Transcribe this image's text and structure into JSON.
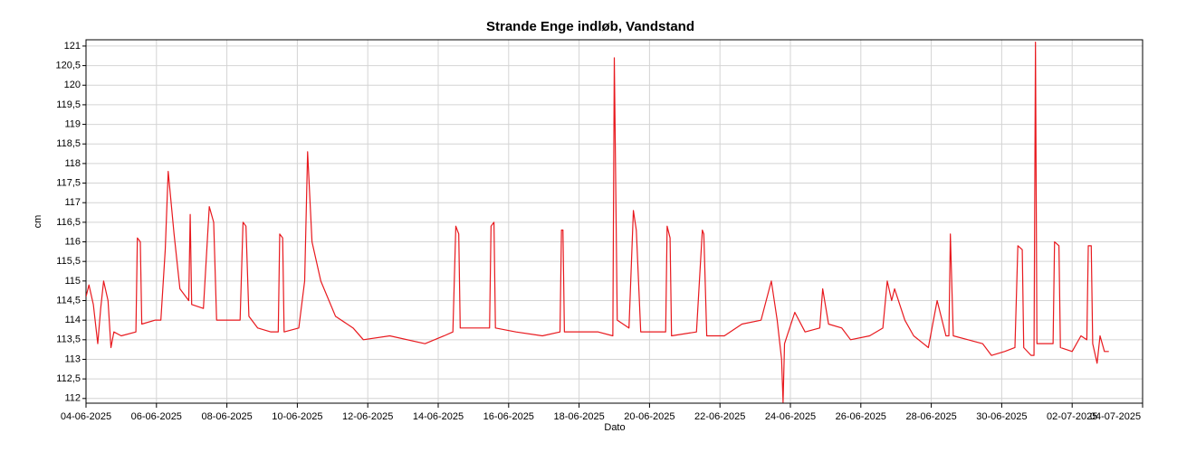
{
  "chart_data": {
    "type": "line",
    "title": "Strande Enge indløb, Vandstand",
    "x_label": "Dato",
    "y_label": "cm",
    "color": "#e8191e",
    "grid": true,
    "xlim": [
      "2025-06-04T00:00",
      "2025-07-04T00:00"
    ],
    "xticks": [
      {
        "value": "2025-06-04T00:00",
        "label": "04-06-2025"
      },
      {
        "value": "2025-06-06T00:00",
        "label": "06-06-2025"
      },
      {
        "value": "2025-06-08T00:00",
        "label": "08-06-2025"
      },
      {
        "value": "2025-06-10T00:00",
        "label": "10-06-2025"
      },
      {
        "value": "2025-06-12T00:00",
        "label": "12-06-2025"
      },
      {
        "value": "2025-06-14T00:00",
        "label": "14-06-2025"
      },
      {
        "value": "2025-06-16T00:00",
        "label": "16-06-2025"
      },
      {
        "value": "2025-06-18T00:00",
        "label": "18-06-2025"
      },
      {
        "value": "2025-06-20T00:00",
        "label": "20-06-2025"
      },
      {
        "value": "2025-06-22T00:00",
        "label": "22-06-2025"
      },
      {
        "value": "2025-06-24T00:00",
        "label": "24-06-2025"
      },
      {
        "value": "2025-06-26T00:00",
        "label": "26-06-2025"
      },
      {
        "value": "2025-06-28T00:00",
        "label": "28-06-2025"
      },
      {
        "value": "2025-06-30T00:00",
        "label": "30-06-2025"
      },
      {
        "value": "2025-07-02T00:00",
        "label": "02-07-2025"
      },
      {
        "value": "2025-07-04T00:00",
        "label": "04-07-2025"
      }
    ],
    "ylim": [
      111.88,
      121.16
    ],
    "yticks": [
      112,
      {
        "value": 112.5,
        "label": "112,5"
      },
      113,
      {
        "value": 113.5,
        "label": "113,5"
      },
      114,
      {
        "value": 114.5,
        "label": "114,5"
      },
      115,
      {
        "value": 115.5,
        "label": "115,5"
      },
      116,
      {
        "value": 116.5,
        "label": "116,5"
      },
      117,
      {
        "value": 117.5,
        "label": "117,5"
      },
      118,
      {
        "value": 118.5,
        "label": "118,5"
      },
      119,
      {
        "value": 119.5,
        "label": "119,5"
      },
      120,
      {
        "value": 120.5,
        "label": "120,5"
      },
      121
    ],
    "x": [
      "2025-06-04T00:00",
      "2025-06-04T02:00",
      "2025-06-04T05:00",
      "2025-06-04T08:00",
      "2025-06-04T10:00",
      "2025-06-04T12:00",
      "2025-06-04T15:00",
      "2025-06-04T17:00",
      "2025-06-04T19:00",
      "2025-06-05T00:00",
      "2025-06-05T10:00",
      "2025-06-05T11:00",
      "2025-06-05T13:00",
      "2025-06-05T14:00",
      "2025-06-05T23:00",
      "2025-06-06T03:00",
      "2025-06-06T06:00",
      "2025-06-06T08:00",
      "2025-06-06T12:00",
      "2025-06-06T16:00",
      "2025-06-06T22:00",
      "2025-06-06T23:00",
      "2025-06-07T00:00",
      "2025-06-07T08:00",
      "2025-06-07T12:00",
      "2025-06-07T15:00",
      "2025-06-07T17:00",
      "2025-06-08T09:00",
      "2025-06-08T11:00",
      "2025-06-08T13:00",
      "2025-06-08T15:00",
      "2025-06-08T21:00",
      "2025-06-09T06:00",
      "2025-06-09T11:00",
      "2025-06-09T12:00",
      "2025-06-09T14:00",
      "2025-06-09T15:00",
      "2025-06-10T01:00",
      "2025-06-10T05:00",
      "2025-06-10T07:00",
      "2025-06-10T10:00",
      "2025-06-10T16:00",
      "2025-06-11T02:00",
      "2025-06-11T14:00",
      "2025-06-11T21:00",
      "2025-06-12T15:00",
      "2025-06-13T15:00",
      "2025-06-14T04:00",
      "2025-06-14T10:00",
      "2025-06-14T12:00",
      "2025-06-14T14:00",
      "2025-06-14T15:00",
      "2025-06-15T11:00",
      "2025-06-15T12:00",
      "2025-06-15T14:00",
      "2025-06-15T15:00",
      "2025-06-16T05:00",
      "2025-06-16T23:00",
      "2025-06-17T11:00",
      "2025-06-17T12:00",
      "2025-06-17T13:00",
      "2025-06-17T14:00",
      "2025-06-18T13:00",
      "2025-06-18T23:00",
      "2025-06-19T00:00",
      "2025-06-19T02:00",
      "2025-06-19T10:00",
      "2025-06-19T13:00",
      "2025-06-19T15:00",
      "2025-06-19T18:00",
      "2025-06-20T11:00",
      "2025-06-20T12:00",
      "2025-06-20T14:00",
      "2025-06-20T15:00",
      "2025-06-21T08:00",
      "2025-06-21T12:00",
      "2025-06-21T13:00",
      "2025-06-21T15:00",
      "2025-06-22T03:00",
      "2025-06-22T15:00",
      "2025-06-23T04:00",
      "2025-06-23T11:00",
      "2025-06-23T15:00",
      "2025-06-23T18:00",
      "2025-06-23T19:00",
      "2025-06-23T20:00",
      "2025-06-24T03:00",
      "2025-06-24T10:00",
      "2025-06-24T20:00",
      "2025-06-24T22:00",
      "2025-06-25T02:00",
      "2025-06-25T11:00",
      "2025-06-25T17:00",
      "2025-06-26T06:00",
      "2025-06-26T15:00",
      "2025-06-26T18:00",
      "2025-06-26T21:00",
      "2025-06-26T23:00",
      "2025-06-27T06:00",
      "2025-06-27T12:00",
      "2025-06-27T22:00",
      "2025-06-28T04:00",
      "2025-06-28T10:00",
      "2025-06-28T12:00",
      "2025-06-28T13:00",
      "2025-06-28T15:00",
      "2025-06-29T01:00",
      "2025-06-29T11:00",
      "2025-06-29T17:00",
      "2025-06-30T02:00",
      "2025-06-30T09:00",
      "2025-06-30T11:00",
      "2025-06-30T14:00",
      "2025-06-30T15:00",
      "2025-06-30T20:00",
      "2025-06-30T22:00",
      "2025-06-30T23:00",
      "2025-07-01T00:00",
      "2025-07-01T09:00",
      "2025-07-01T11:00",
      "2025-07-01T12:00",
      "2025-07-01T15:00",
      "2025-07-01T16:00",
      "2025-07-02T00:00",
      "2025-07-02T06:00",
      "2025-07-02T10:00",
      "2025-07-02T11:00",
      "2025-07-02T13:00",
      "2025-07-02T14:00",
      "2025-07-02T17:00",
      "2025-07-02T19:00",
      "2025-07-02T22:00",
      "2025-07-03T01:00"
    ],
    "values": [
      114.6,
      114.9,
      114.4,
      113.4,
      114.3,
      115.0,
      114.5,
      113.3,
      113.7,
      113.6,
      113.7,
      116.1,
      116.0,
      113.9,
      114.0,
      114.0,
      115.8,
      117.8,
      116.2,
      114.8,
      114.5,
      116.7,
      114.4,
      114.3,
      116.9,
      116.5,
      114.0,
      114.0,
      116.5,
      116.4,
      114.1,
      113.8,
      113.7,
      113.7,
      116.2,
      116.1,
      113.7,
      113.8,
      115.0,
      118.3,
      116.0,
      115.0,
      114.1,
      113.8,
      113.5,
      113.6,
      113.4,
      113.6,
      113.7,
      116.4,
      116.2,
      113.8,
      113.8,
      116.4,
      116.5,
      113.8,
      113.7,
      113.6,
      113.7,
      116.3,
      116.3,
      113.7,
      113.7,
      113.6,
      120.7,
      114.0,
      113.8,
      116.8,
      116.3,
      113.7,
      113.7,
      116.4,
      116.1,
      113.6,
      113.7,
      116.3,
      116.2,
      113.6,
      113.6,
      113.9,
      114.0,
      115.0,
      114.0,
      113.0,
      111.9,
      113.4,
      114.2,
      113.7,
      113.8,
      114.8,
      113.9,
      113.8,
      113.5,
      113.6,
      113.8,
      115.0,
      114.5,
      114.8,
      114.0,
      113.6,
      113.3,
      114.5,
      113.6,
      113.6,
      116.2,
      113.6,
      113.5,
      113.4,
      113.1,
      113.2,
      113.3,
      115.9,
      115.8,
      113.3,
      113.1,
      113.1,
      121.1,
      113.4,
      113.4,
      113.4,
      116.0,
      115.9,
      113.3,
      113.2,
      113.6,
      113.5,
      115.9,
      115.9,
      113.4,
      112.9,
      113.6,
      113.2,
      113.2
    ]
  }
}
